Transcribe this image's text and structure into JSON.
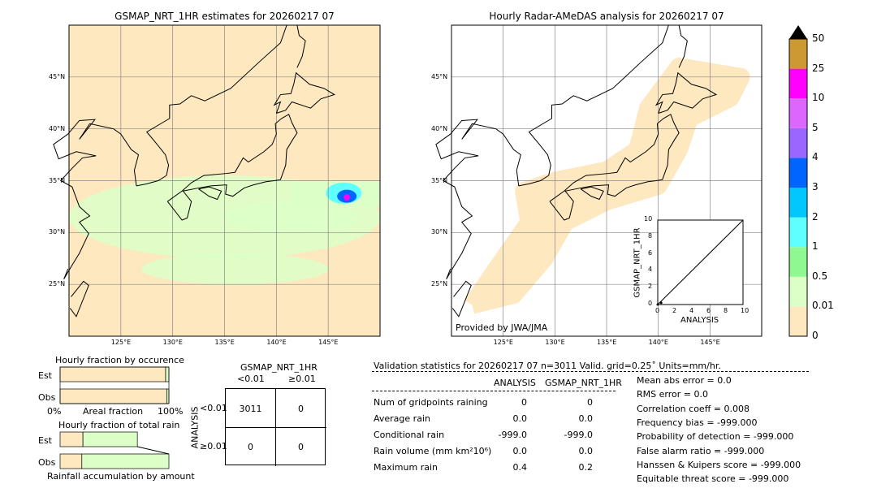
{
  "chart_data": [
    {
      "type": "heatmap",
      "title": "GSMAP_NRT_1HR estimates for 20260217 07",
      "lon_range": [
        120,
        150
      ],
      "lat_range": [
        20,
        50
      ],
      "x_ticks": [
        "125°E",
        "130°E",
        "135°E",
        "140°E",
        "145°E"
      ],
      "y_ticks": [
        "45°N",
        "40°N",
        "35°N",
        "30°N",
        "25°N"
      ],
      "grid": true,
      "rain_areas": [
        {
          "lon": [
            143,
            150
          ],
          "lat": [
            32,
            35
          ],
          "max": "0.5-10"
        },
        {
          "lon": [
            122,
            148
          ],
          "lat": [
            23,
            33
          ],
          "max": "0.01-0.5"
        }
      ]
    },
    {
      "type": "heatmap",
      "title": "Hourly Radar-AMeDAS analysis for 20260217 07",
      "lon_range": [
        120,
        150
      ],
      "lat_range": [
        20,
        50
      ],
      "x_ticks": [
        "125°E",
        "130°E",
        "135°E",
        "140°E",
        "145°E"
      ],
      "y_ticks": [
        "45°N",
        "40°N",
        "35°N",
        "30°N",
        "25°N"
      ],
      "grid": true,
      "annotation": "Provided by JWA/JMA"
    },
    {
      "type": "scatter",
      "xlabel": "ANALYSIS",
      "ylabel": "GSMAP_NRT_1HR",
      "xlim": [
        0,
        10
      ],
      "ylim": [
        0,
        10
      ],
      "ticks": [
        "0",
        "2",
        "4",
        "6",
        "8",
        "10"
      ],
      "points": [
        [
          0,
          0
        ],
        [
          0.4,
          0.2
        ]
      ]
    },
    {
      "type": "colorbar",
      "levels": [
        "0",
        "0.01",
        "0.5",
        "1",
        "2",
        "3",
        "4",
        "5",
        "10",
        "25",
        "50"
      ],
      "colors": [
        "#fee8c0",
        "#dcffc8",
        "#90f890",
        "#60ffff",
        "#00c8ff",
        "#0064ff",
        "#9966ff",
        "#dc66ff",
        "#ff00ff",
        "#cc9933"
      ],
      "extend_color": "#000000"
    },
    {
      "type": "bar",
      "title": "Hourly fraction by occurence",
      "categories": [
        "Est",
        "Obs"
      ],
      "xlabel": "Areal fraction",
      "x_ticks": [
        "0%",
        "100%"
      ],
      "series": [
        {
          "values": [
            0.97,
            0.98
          ],
          "color": "#fee8c0"
        },
        {
          "values": [
            0.03,
            0.02
          ],
          "color": "#dcffc8"
        }
      ]
    },
    {
      "type": "bar",
      "title": "Hourly fraction of total rain",
      "categories": [
        "Est",
        "Obs"
      ],
      "xlabel": "Rainfall accumulation by amount",
      "series": [
        {
          "values": [
            0.21,
            0.2
          ],
          "color": "#fee8c0"
        },
        {
          "values": [
            0.5,
            0.8
          ],
          "color": "#dcffc8"
        }
      ]
    },
    {
      "type": "table",
      "title": "GSMAP_NRT_1HR",
      "col_headers": [
        "<0.01",
        "≥0.01"
      ],
      "row_label": "ANALYSIS",
      "row_headers": [
        "<0.01",
        "≥0.01"
      ],
      "cells": [
        [
          "3011",
          "0"
        ],
        [
          "0",
          "0"
        ]
      ]
    }
  ],
  "stats": {
    "title": "Validation statistics for 20260217 07  n=3011 Valid. grid=0.25˚ Units=mm/hr.",
    "headers": [
      "ANALYSIS",
      "GSMAP_NRT_1HR"
    ],
    "rows": [
      {
        "label": "Num of gridpoints raining",
        "a": "0",
        "b": "0"
      },
      {
        "label": "Average rain",
        "a": "0.0",
        "b": "0.0"
      },
      {
        "label": "Conditional rain",
        "a": "-999.0",
        "b": "-999.0"
      },
      {
        "label": "Rain volume (mm km²10⁶)",
        "a": "0.0",
        "b": "0.0"
      },
      {
        "label": "Maximum rain",
        "a": "0.4",
        "b": "0.2"
      }
    ],
    "scores": [
      "Mean abs error =    0.0",
      "RMS error =    0.0",
      "Correlation coeff =  0.008",
      "Frequency bias = -999.000",
      "Probability of detection = -999.000",
      "False alarm ratio = -999.000",
      "Hanssen & Kuipers score = -999.000",
      "Equitable threat score = -999.000"
    ]
  }
}
